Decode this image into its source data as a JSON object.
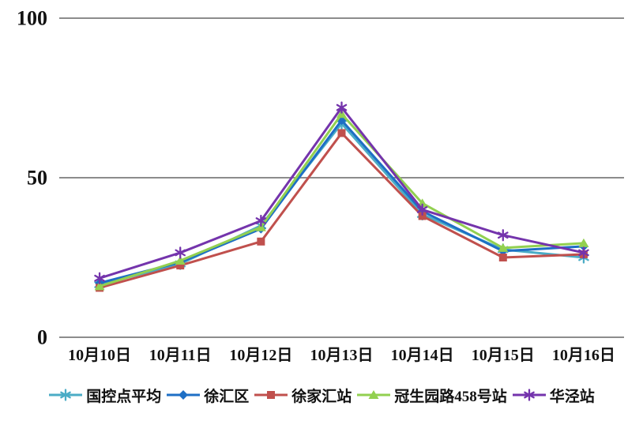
{
  "chart_data": {
    "type": "line",
    "title": "",
    "xlabel": "",
    "ylabel": "",
    "categories": [
      "10月10日",
      "10月11日",
      "10月12日",
      "10月13日",
      "10月14日",
      "10月15日",
      "10月16日"
    ],
    "series": [
      {
        "name": "国控点平均",
        "color": "#4BACC6",
        "marker": "asterisk",
        "values": [
          16.5,
          23,
          35,
          67,
          38.5,
          27.5,
          25
        ]
      },
      {
        "name": "徐汇区",
        "color": "#1E6FC5",
        "marker": "diamond",
        "values": [
          17,
          23.5,
          34,
          68,
          39.5,
          27,
          28.5
        ]
      },
      {
        "name": "徐家汇站",
        "color": "#C0504D",
        "marker": "square",
        "values": [
          15.5,
          22.5,
          30,
          64,
          38,
          25,
          26
        ]
      },
      {
        "name": "冠生园路458号站",
        "color": "#92D050",
        "marker": "triangle",
        "values": [
          16,
          24,
          34.5,
          70,
          42,
          28,
          29.5
        ]
      },
      {
        "name": "华泾站",
        "color": "#7434AC",
        "marker": "asterisk",
        "values": [
          18.5,
          26.5,
          36.5,
          72,
          40,
          32,
          26.5
        ]
      }
    ],
    "ylim": [
      0,
      100
    ],
    "yticks": [
      0,
      50,
      100
    ],
    "grid": "horizontal",
    "grid_color": "#8C8C8C",
    "legend_position": "bottom"
  }
}
